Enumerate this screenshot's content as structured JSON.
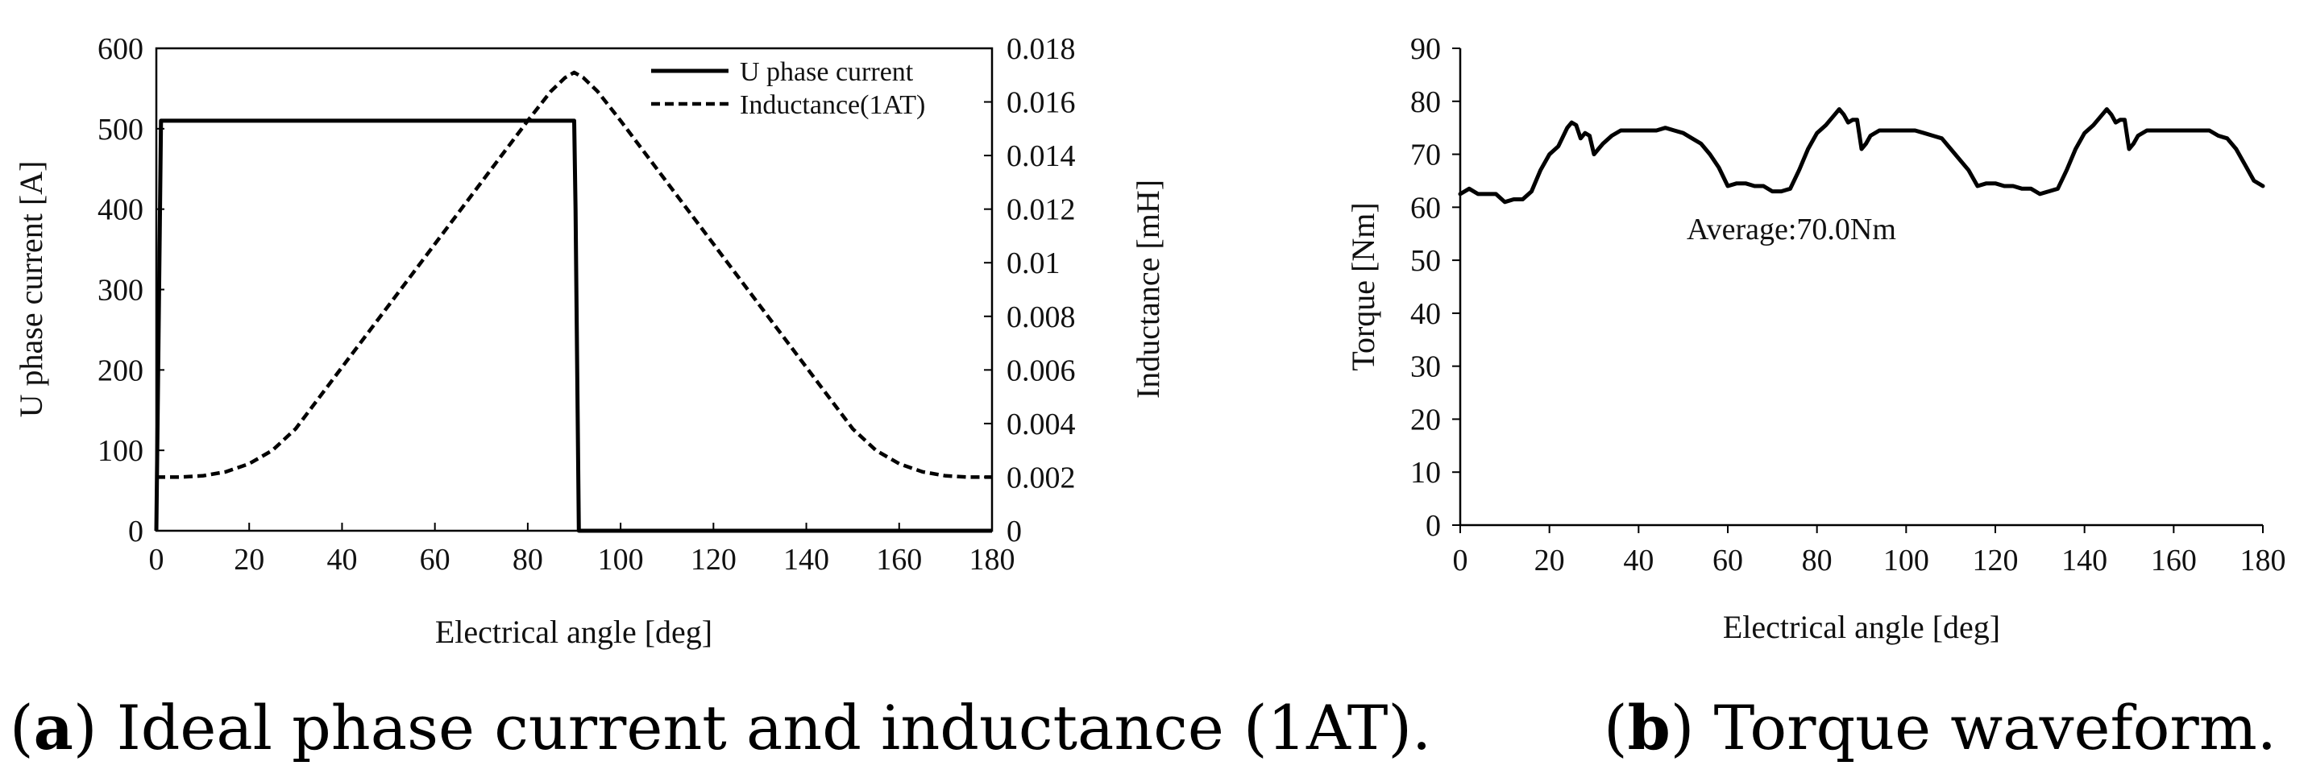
{
  "chart_data": [
    {
      "id": "a",
      "type": "line",
      "caption_letter": "a",
      "caption_text": "Ideal phase current and inductance (1AT).",
      "xlabel": "Electrical angle [deg]",
      "ylabel_left": "U phase current [A]",
      "ylabel_right": "Inductance [mH]",
      "xlim": [
        0,
        180
      ],
      "ylim_left": [
        0,
        600
      ],
      "ylim_right": [
        0,
        0.018
      ],
      "x_ticks": [
        "0",
        "20",
        "40",
        "60",
        "80",
        "100",
        "120",
        "140",
        "160",
        "180"
      ],
      "y_ticks_left": [
        "0",
        "100",
        "200",
        "300",
        "400",
        "500",
        "600"
      ],
      "y_ticks_right": [
        "0",
        "0.002",
        "0.004",
        "0.006",
        "0.008",
        "0.01",
        "0.012",
        "0.014",
        "0.016",
        "0.018"
      ],
      "legend_position": "top-right",
      "series": [
        {
          "name": "U phase current",
          "axis": "left",
          "style": "solid",
          "x": [
            0,
            1,
            90,
            90.3,
            91,
            180
          ],
          "y": [
            0,
            510,
            510,
            400,
            0,
            0
          ]
        },
        {
          "name": "Inductance(1AT)",
          "axis": "right",
          "style": "dashed",
          "x": [
            0,
            5,
            10,
            15,
            20,
            25,
            30,
            40,
            50,
            60,
            70,
            80,
            85,
            88,
            90,
            92,
            95,
            100,
            110,
            120,
            130,
            140,
            150,
            155,
            160,
            165,
            170,
            175,
            180
          ],
          "y": [
            0.002,
            0.002,
            0.00205,
            0.0022,
            0.0025,
            0.003,
            0.0038,
            0.0061,
            0.0084,
            0.0107,
            0.013,
            0.0153,
            0.0164,
            0.0169,
            0.0171,
            0.0169,
            0.0164,
            0.0153,
            0.013,
            0.0107,
            0.0084,
            0.0061,
            0.0038,
            0.003,
            0.0025,
            0.0022,
            0.00205,
            0.002,
            0.002
          ]
        }
      ]
    },
    {
      "id": "b",
      "type": "line",
      "caption_letter": "b",
      "caption_text": "Torque waveform.",
      "xlabel": "Electrical angle [deg]",
      "ylabel": "Torque [Nm]",
      "xlim": [
        0,
        180
      ],
      "ylim": [
        0,
        90
      ],
      "x_ticks": [
        "0",
        "20",
        "40",
        "60",
        "80",
        "100",
        "120",
        "140",
        "160",
        "180"
      ],
      "y_ticks": [
        "0",
        "10",
        "20",
        "30",
        "40",
        "50",
        "60",
        "70",
        "80",
        "90"
      ],
      "annotation": "Average:70.0Nm",
      "series": [
        {
          "name": "Torque",
          "style": "solid",
          "x": [
            0,
            2,
            4,
            6,
            8,
            10,
            12,
            14,
            16,
            18,
            20,
            22,
            24,
            25,
            26,
            27,
            28,
            29,
            30,
            31,
            32,
            34,
            36,
            38,
            40,
            42,
            44,
            46,
            48,
            50,
            52,
            54,
            56,
            58,
            60,
            62,
            64,
            66,
            68,
            70,
            72,
            74,
            76,
            78,
            80,
            82,
            84,
            85,
            86,
            87,
            88,
            89,
            90,
            91,
            92,
            94,
            96,
            98,
            100,
            102,
            104,
            106,
            108,
            110,
            112,
            114,
            116,
            118,
            120,
            122,
            124,
            126,
            128,
            130,
            132,
            134,
            136,
            138,
            140,
            142,
            144,
            145,
            146,
            147,
            148,
            149,
            150,
            151,
            152,
            154,
            156,
            158,
            160,
            162,
            164,
            166,
            168,
            170,
            172,
            174,
            176,
            178,
            180
          ],
          "y": [
            62.5,
            63.5,
            62.5,
            62.5,
            62.5,
            61.0,
            61.5,
            61.5,
            63.0,
            67.0,
            70.0,
            71.5,
            75.0,
            76.0,
            75.5,
            73.0,
            74.0,
            73.5,
            70.0,
            71.0,
            72.0,
            73.5,
            74.5,
            74.5,
            74.5,
            74.5,
            74.5,
            75.0,
            74.5,
            74.0,
            73.0,
            72.0,
            70.0,
            67.5,
            64.0,
            64.5,
            64.5,
            64.0,
            64.0,
            63.0,
            63.0,
            63.5,
            67.0,
            71.0,
            74.0,
            75.5,
            77.5,
            78.5,
            77.5,
            76.0,
            76.5,
            76.5,
            71.0,
            72.0,
            73.5,
            74.5,
            74.5,
            74.5,
            74.5,
            74.5,
            74.0,
            73.5,
            73.0,
            71.0,
            69.0,
            67.0,
            64.0,
            64.5,
            64.5,
            64.0,
            64.0,
            63.5,
            63.5,
            62.5,
            63.0,
            63.5,
            67.0,
            71.0,
            74.0,
            75.5,
            77.5,
            78.5,
            77.5,
            76.0,
            76.5,
            76.5,
            71.0,
            72.0,
            73.5,
            74.5,
            74.5,
            74.5,
            74.5,
            74.5,
            74.5,
            74.5,
            74.5,
            73.5,
            73.0,
            71.0,
            68.0,
            65.0,
            64.0
          ]
        }
      ]
    }
  ]
}
